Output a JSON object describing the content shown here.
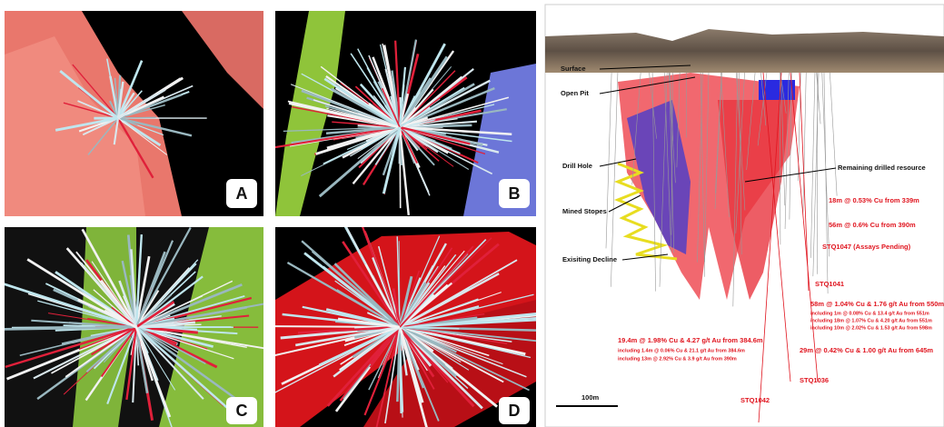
{
  "panels": [
    {
      "label": "A"
    },
    {
      "label": "B"
    },
    {
      "label": "C"
    },
    {
      "label": "D"
    }
  ],
  "section": {
    "features": [
      "Surface",
      "Open Pit",
      "Drill Hole",
      "Mined Stopes",
      "Exisiting Decline",
      "Remaining drilled resource"
    ],
    "intercepts": [
      "18m @ 0.53% Cu from 339m",
      "56m @ 0.6% Cu from 390m",
      "STQ1047 (Assays Pending)",
      "STQ1041",
      "58m @ 1.04% Cu & 1.76 g/t Au from 550m",
      "including 1m @ 0.08% Cu & 13.4 g/t Au from 551m",
      "including 18m @ 1.07% Cu & 4.20 g/t Au from 551m",
      "including 10m @ 2.02% Cu & 1.53 g/t Au from 598m",
      "29m @ 0.42% Cu & 1.00 g/t Au from 645m",
      "19.4m @ 1.98% Cu & 4.27 g/t Au from 384.6m",
      "including 1.4m @ 0.06% Cu & 21.1 g/t Au from 384.6m",
      "including 13m @ 2.92% Cu & 3.9 g/t Au from 390m",
      "STQ1036",
      "STQ1042"
    ],
    "scale_bar": "100m"
  }
}
